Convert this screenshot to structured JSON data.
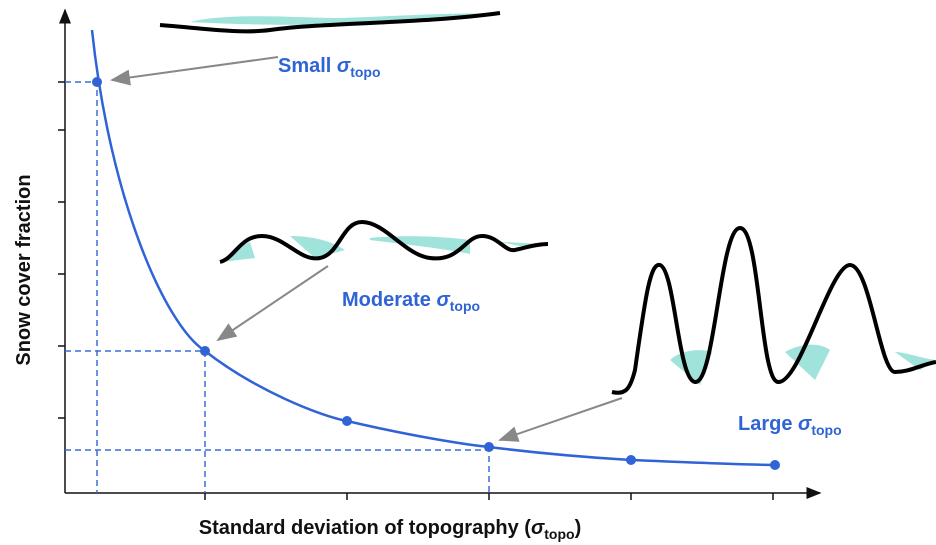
{
  "axes": {
    "y_label": "Snow cover fraction",
    "x_label": {
      "text": "Standard deviation of topography (",
      "symbol": "σ",
      "subscript": "topo",
      "close": ")"
    }
  },
  "annotations": [
    {
      "text": "Small",
      "symbol": "σ",
      "subscript": "topo"
    },
    {
      "text": "Moderate",
      "symbol": "σ",
      "subscript": "topo"
    },
    {
      "text": "Large",
      "symbol": "σ",
      "subscript": "topo"
    }
  ]
}
